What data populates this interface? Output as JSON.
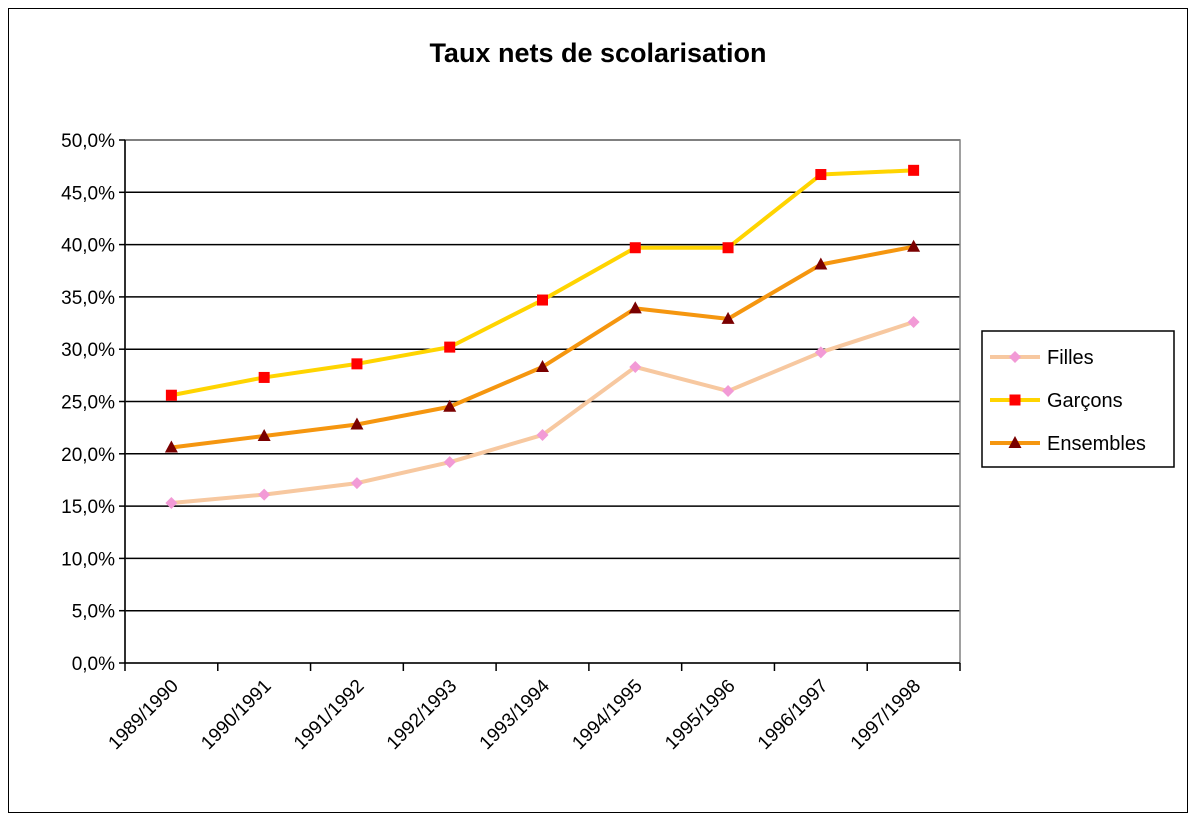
{
  "chart_data": {
    "type": "line",
    "title": "Taux nets de scolarisation",
    "categories": [
      "1989/1990",
      "1990/1991",
      "1991/1992",
      "1992/1993",
      "1993/1994",
      "1994/1995",
      "1995/1996",
      "1996/1997",
      "1997/1998"
    ],
    "ylim": [
      0,
      50
    ],
    "y_ticks": [
      "0,0%",
      "5,0%",
      "10,0%",
      "15,0%",
      "20,0%",
      "25,0%",
      "30,0%",
      "35,0%",
      "40,0%",
      "45,0%",
      "50,0%"
    ],
    "grid": true,
    "legend_position": "right",
    "series": [
      {
        "name": "Filles",
        "color": "#f7c8a0",
        "marker": "diamond",
        "marker_color": "#f29ad6",
        "values": [
          15.3,
          16.1,
          17.2,
          19.2,
          21.8,
          28.3,
          26.0,
          29.7,
          32.6
        ]
      },
      {
        "name": "Garçons",
        "color": "#ffd400",
        "marker": "square",
        "marker_color": "#ff0000",
        "values": [
          25.6,
          27.3,
          28.6,
          30.2,
          34.7,
          39.7,
          39.7,
          46.7,
          47.1
        ]
      },
      {
        "name": "Ensembles",
        "color": "#f5960f",
        "marker": "triangle",
        "marker_color": "#7a0000",
        "values": [
          20.6,
          21.7,
          22.8,
          24.5,
          28.3,
          33.9,
          32.9,
          38.1,
          39.8
        ]
      }
    ]
  }
}
